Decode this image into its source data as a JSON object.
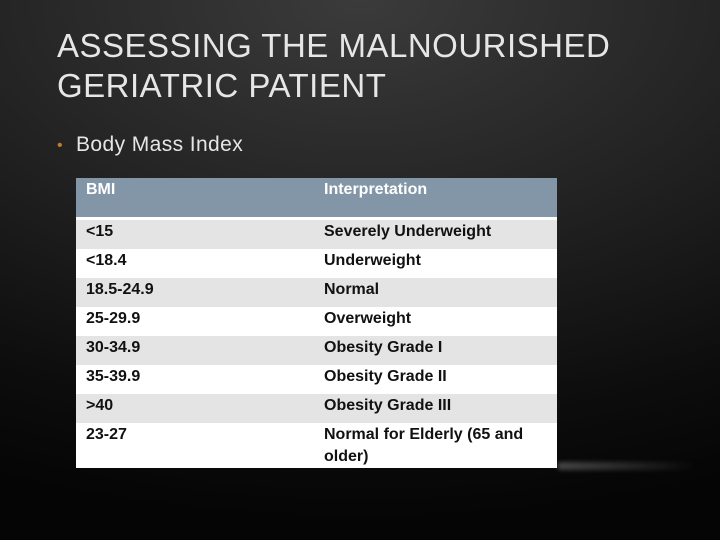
{
  "slide": {
    "title_lines": [
      "ASSESSING THE MALNOURISHED",
      "GERIATRIC PATIENT"
    ],
    "bullet": "Body Mass Index",
    "bullet_glyph": "•",
    "accent_color": "#c07a2c",
    "header_color": "#8296a8"
  },
  "table": {
    "headers": [
      "BMI",
      "Interpretation"
    ],
    "rows": [
      [
        "<15",
        "Severely Underweight"
      ],
      [
        "<18.4",
        "Underweight"
      ],
      [
        "18.5-24.9",
        "Normal"
      ],
      [
        "25-29.9",
        "Overweight"
      ],
      [
        "30-34.9",
        "Obesity Grade I"
      ],
      [
        "35-39.9",
        "Obesity Grade II"
      ],
      [
        ">40",
        "Obesity Grade III"
      ],
      [
        "23-27",
        "Normal for Elderly (65 and older)"
      ]
    ]
  }
}
